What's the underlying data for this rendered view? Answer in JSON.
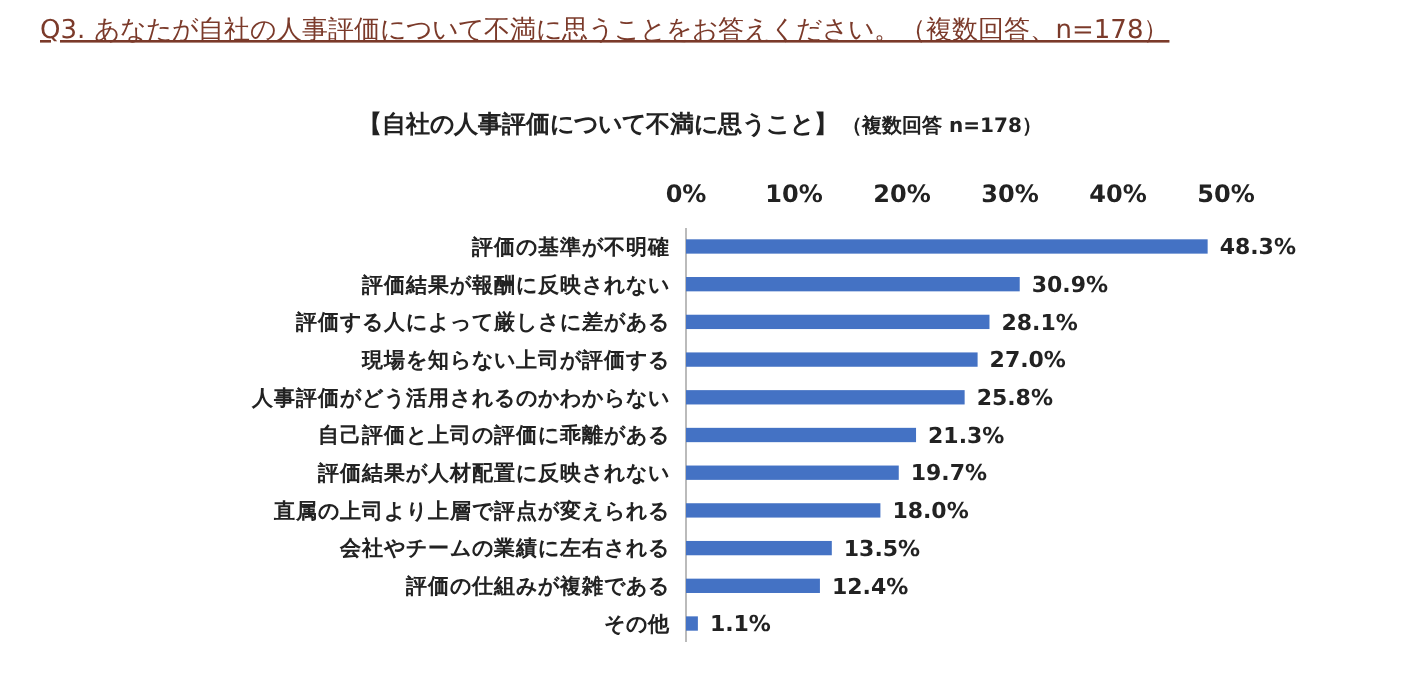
{
  "chart_data": {
    "type": "bar",
    "orientation": "horizontal",
    "title": "Q3. あなたが自社の人事評価について不満に思うことをお答えください。（複数回答、n=178）",
    "subtitle": "【自社の人事評価について不満に思うこと】",
    "annotations": [
      "（複数回答 n=178）"
    ],
    "categories": [
      "評価の基準が不明確",
      "評価結果が報酬に反映されない",
      "評価する人によって厳しさに差がある",
      "現場を知らない上司が評価する",
      "人事評価がどう活用されるのかわからない",
      "自己評価と上司の評価に乖離がある",
      "評価結果が人材配置に反映されない",
      "直属の上司より上層で評点が変えられる",
      "会社やチームの業績に左右される",
      "評価の仕組みが複雑である",
      "その他"
    ],
    "values": [
      48.3,
      30.9,
      28.1,
      27.0,
      25.8,
      21.3,
      19.7,
      18.0,
      13.5,
      12.4,
      1.1
    ],
    "value_labels": [
      "48.3%",
      "30.9%",
      "28.1%",
      "27.0%",
      "25.8%",
      "21.3%",
      "19.7%",
      "18.0%",
      "13.5%",
      "12.4%",
      "1.1%"
    ],
    "color": "#4472c4",
    "xlim": [
      0,
      50
    ],
    "xticks": [
      {
        "value": 0,
        "label": "0%"
      },
      {
        "value": 10,
        "label": "10%"
      },
      {
        "value": 20,
        "label": "20%"
      },
      {
        "value": 30,
        "label": "30%"
      },
      {
        "value": 40,
        "label": "40%"
      },
      {
        "value": 50,
        "label": "50%"
      }
    ]
  }
}
